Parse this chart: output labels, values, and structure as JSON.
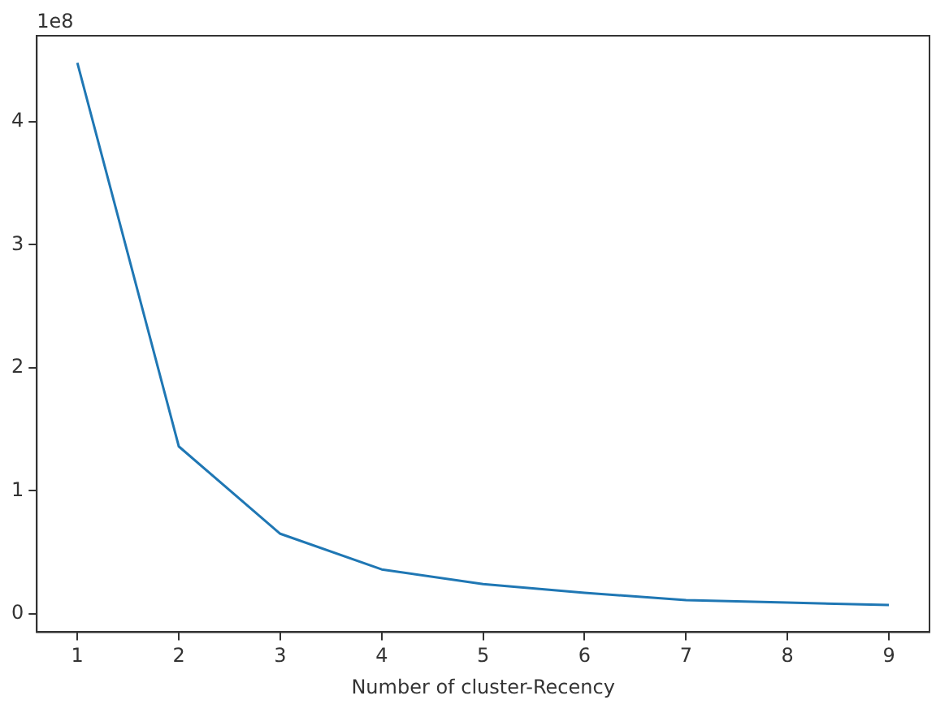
{
  "chart_data": {
    "type": "line",
    "xlabel": "Number of cluster-Recency",
    "x": [
      1,
      2,
      3,
      4,
      5,
      6,
      7,
      8,
      9
    ],
    "series": [
      {
        "color": "#1f77b4",
        "values": [
          4.48,
          1.36,
          0.65,
          0.36,
          0.24,
          0.17,
          0.11,
          0.09,
          0.07
        ]
      }
    ],
    "xlim": [
      0.6,
      9.4
    ],
    "xticks": [
      1,
      2,
      3,
      4,
      5,
      6,
      7,
      8,
      9
    ],
    "ylim": [
      -0.15,
      4.7
    ],
    "yticks": [
      0,
      1,
      2,
      3,
      4
    ],
    "annotations": [
      "1e8"
    ],
    "grid": false,
    "legend": false,
    "marker": "none",
    "line_style": "solid"
  }
}
